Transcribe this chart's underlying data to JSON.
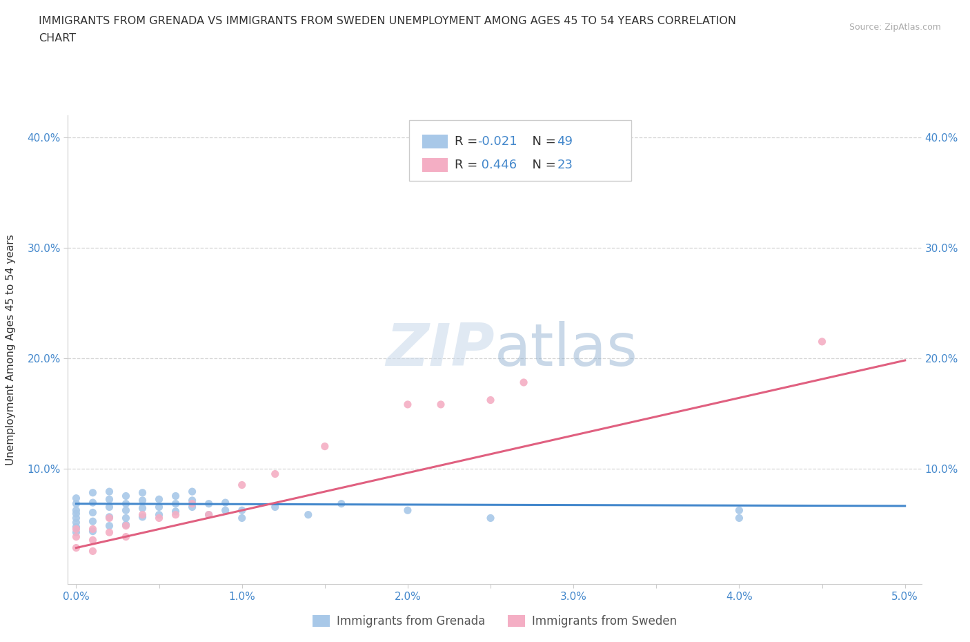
{
  "title_line1": "IMMIGRANTS FROM GRENADA VS IMMIGRANTS FROM SWEDEN UNEMPLOYMENT AMONG AGES 45 TO 54 YEARS CORRELATION",
  "title_line2": "CHART",
  "source_text": "Source: ZipAtlas.com",
  "ylabel": "Unemployment Among Ages 45 to 54 years",
  "xlim": [
    -0.0005,
    0.051
  ],
  "ylim": [
    -0.005,
    0.42
  ],
  "xtick_labels": [
    "0.0%",
    "",
    "1.0%",
    "",
    "2.0%",
    "",
    "3.0%",
    "",
    "4.0%",
    "",
    "5.0%"
  ],
  "xtick_vals": [
    0.0,
    0.005,
    0.01,
    0.015,
    0.02,
    0.025,
    0.03,
    0.035,
    0.04,
    0.045,
    0.05
  ],
  "ytick_labels": [
    "10.0%",
    "20.0%",
    "30.0%",
    "40.0%"
  ],
  "ytick_vals": [
    0.1,
    0.2,
    0.3,
    0.4
  ],
  "grenada_color": "#a8c8e8",
  "sweden_color": "#f4aec4",
  "grenada_line_color": "#4488cc",
  "sweden_line_color": "#e06080",
  "R_text_color": "#4488cc",
  "label_color": "#333333",
  "tick_color": "#4488cc",
  "watermark_color": "#c8d8ea",
  "grenada_x": [
    0.0,
    0.0,
    0.0,
    0.0,
    0.0,
    0.0,
    0.0,
    0.0,
    0.001,
    0.001,
    0.001,
    0.001,
    0.001,
    0.002,
    0.002,
    0.002,
    0.002,
    0.002,
    0.003,
    0.003,
    0.003,
    0.003,
    0.003,
    0.004,
    0.004,
    0.004,
    0.004,
    0.005,
    0.005,
    0.005,
    0.006,
    0.006,
    0.006,
    0.007,
    0.007,
    0.007,
    0.008,
    0.008,
    0.009,
    0.009,
    0.01,
    0.01,
    0.012,
    0.014,
    0.016,
    0.02,
    0.025,
    0.04,
    0.04
  ],
  "grenada_y": [
    0.055,
    0.062,
    0.068,
    0.073,
    0.059,
    0.051,
    0.047,
    0.042,
    0.06,
    0.069,
    0.078,
    0.052,
    0.043,
    0.065,
    0.072,
    0.079,
    0.056,
    0.048,
    0.068,
    0.075,
    0.062,
    0.055,
    0.049,
    0.071,
    0.064,
    0.078,
    0.056,
    0.065,
    0.072,
    0.058,
    0.068,
    0.075,
    0.061,
    0.071,
    0.065,
    0.079,
    0.068,
    0.058,
    0.069,
    0.062,
    0.062,
    0.055,
    0.065,
    0.058,
    0.068,
    0.062,
    0.055,
    0.062,
    0.055
  ],
  "sweden_x": [
    0.0,
    0.0,
    0.0,
    0.001,
    0.001,
    0.001,
    0.002,
    0.002,
    0.003,
    0.003,
    0.004,
    0.005,
    0.006,
    0.007,
    0.008,
    0.01,
    0.012,
    0.015,
    0.02,
    0.022,
    0.025,
    0.027,
    0.045
  ],
  "sweden_y": [
    0.038,
    0.045,
    0.028,
    0.045,
    0.035,
    0.025,
    0.042,
    0.055,
    0.048,
    0.038,
    0.058,
    0.055,
    0.058,
    0.068,
    0.058,
    0.085,
    0.095,
    0.12,
    0.158,
    0.158,
    0.162,
    0.178,
    0.215
  ],
  "grenada_trend_x": [
    0.0,
    0.05
  ],
  "grenada_trend_y": [
    0.068,
    0.066
  ],
  "sweden_trend_x": [
    0.0,
    0.05
  ],
  "sweden_trend_y": [
    0.028,
    0.198
  ],
  "legend_grenada": "R = -0.021   N = 49",
  "legend_sweden": "R =  0.446   N = 23",
  "bottom_legend_1": "Immigrants from Grenada",
  "bottom_legend_2": "Immigrants from Sweden"
}
